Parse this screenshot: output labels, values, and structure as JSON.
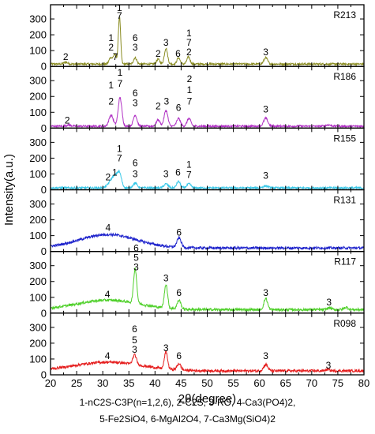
{
  "chart_data": {
    "type": "line",
    "xlabel": "2θ(degree)",
    "ylabel": "Intensity(a.u.)",
    "xlim": [
      20,
      80
    ],
    "ylim": [
      0,
      390
    ],
    "x_ticks": [
      "20",
      "25",
      "30",
      "35",
      "40",
      "45",
      "50",
      "55",
      "60",
      "65",
      "70",
      "75",
      "80"
    ],
    "y_ticks": [
      "0",
      "100",
      "200",
      "300"
    ],
    "grid": false,
    "legend_lines": [
      "1-nC2S-C3P(n=1,2,6), 2-C2S, 3-RO, 4-Ca3(PO4)2,",
      "5-Fe2SiO4,  6-MgAl2O4, 7-Ca3Mg(SiO4)2"
    ],
    "panels": [
      {
        "name": "R213",
        "color": "#8a8c22",
        "baseline": 15,
        "peaks": [
          [
            22.9,
            12,
            0.35
          ],
          [
            31.5,
            40,
            0.3
          ],
          [
            32.3,
            60,
            0.3
          ],
          [
            33.2,
            300,
            0.22
          ],
          [
            36.2,
            40,
            0.3
          ],
          [
            40.6,
            30,
            0.3
          ],
          [
            42.1,
            100,
            0.3
          ],
          [
            44.5,
            40,
            0.3
          ],
          [
            46.4,
            45,
            0.3
          ],
          [
            61.2,
            40,
            0.35
          ]
        ],
        "labels": [
          {
            "x": 22.9,
            "y": 40,
            "text": "2"
          },
          {
            "x": 31.6,
            "y": 160,
            "text": "1"
          },
          {
            "x": 31.6,
            "y": 100,
            "text": "2"
          },
          {
            "x": 32.4,
            "y": 40,
            "text": "7"
          },
          {
            "x": 33.2,
            "y": 350,
            "text": "1"
          },
          {
            "x": 33.2,
            "y": 300,
            "text": "7"
          },
          {
            "x": 36.2,
            "y": 160,
            "text": "6"
          },
          {
            "x": 36.2,
            "y": 100,
            "text": "3"
          },
          {
            "x": 40.6,
            "y": 60,
            "text": "2"
          },
          {
            "x": 42.1,
            "y": 130,
            "text": "3"
          },
          {
            "x": 44.4,
            "y": 60,
            "text": "6"
          },
          {
            "x": 46.5,
            "y": 190,
            "text": "1"
          },
          {
            "x": 46.5,
            "y": 130,
            "text": "7"
          },
          {
            "x": 46.5,
            "y": 70,
            "text": "2"
          },
          {
            "x": 61.2,
            "y": 70,
            "text": "3"
          }
        ]
      },
      {
        "name": "R186",
        "color": "#b030c4",
        "baseline": 12,
        "peaks": [
          [
            23.5,
            8,
            0.4
          ],
          [
            31.6,
            70,
            0.4
          ],
          [
            33.3,
            180,
            0.35
          ],
          [
            36.2,
            70,
            0.35
          ],
          [
            40.6,
            40,
            0.35
          ],
          [
            42.1,
            100,
            0.35
          ],
          [
            44.5,
            50,
            0.35
          ],
          [
            46.5,
            50,
            0.35
          ],
          [
            61.2,
            50,
            0.4
          ],
          [
            73.2,
            8,
            0.5
          ]
        ],
        "labels": [
          {
            "x": 23.2,
            "y": 30,
            "text": "2"
          },
          {
            "x": 31.6,
            "y": 250,
            "text": "1"
          },
          {
            "x": 31.6,
            "y": 150,
            "text": "2"
          },
          {
            "x": 33.3,
            "y": 330,
            "text": "1"
          },
          {
            "x": 33.3,
            "y": 260,
            "text": "7"
          },
          {
            "x": 36.2,
            "y": 200,
            "text": "6"
          },
          {
            "x": 36.2,
            "y": 140,
            "text": "3"
          },
          {
            "x": 40.6,
            "y": 120,
            "text": "2"
          },
          {
            "x": 42.2,
            "y": 150,
            "text": "3"
          },
          {
            "x": 44.5,
            "y": 110,
            "text": "6"
          },
          {
            "x": 46.6,
            "y": 290,
            "text": "2"
          },
          {
            "x": 46.6,
            "y": 220,
            "text": "1"
          },
          {
            "x": 46.6,
            "y": 150,
            "text": "7"
          },
          {
            "x": 61.2,
            "y": 100,
            "text": "3"
          }
        ]
      },
      {
        "name": "R155",
        "color": "#38c8e8",
        "baseline": 12,
        "peaks": [
          [
            31.6,
            40,
            0.6
          ],
          [
            32.4,
            55,
            0.5
          ],
          [
            33.2,
            85,
            0.4
          ],
          [
            36.2,
            30,
            0.4
          ],
          [
            42.1,
            25,
            0.4
          ],
          [
            44.5,
            40,
            0.35
          ],
          [
            46.5,
            25,
            0.4
          ],
          [
            61.2,
            12,
            0.5
          ]
        ],
        "labels": [
          {
            "x": 31.0,
            "y": 60,
            "text": "2"
          },
          {
            "x": 32.3,
            "y": 90,
            "text": "1"
          },
          {
            "x": 33.2,
            "y": 240,
            "text": "1"
          },
          {
            "x": 33.2,
            "y": 180,
            "text": "7"
          },
          {
            "x": 36.2,
            "y": 150,
            "text": "6"
          },
          {
            "x": 36.2,
            "y": 80,
            "text": "3"
          },
          {
            "x": 42.1,
            "y": 80,
            "text": "3"
          },
          {
            "x": 44.4,
            "y": 90,
            "text": "6"
          },
          {
            "x": 46.5,
            "y": 140,
            "text": "1"
          },
          {
            "x": 46.5,
            "y": 75,
            "text": "7"
          },
          {
            "x": 61.2,
            "y": 70,
            "text": "3"
          }
        ]
      },
      {
        "name": "R131",
        "color": "#1e23cc",
        "baseline": 22,
        "hump": [
          31,
          85,
          5.5
        ],
        "peaks": [
          [
            44.6,
            60,
            0.4
          ]
        ],
        "labels": [
          {
            "x": 31.0,
            "y": 130,
            "text": "4"
          },
          {
            "x": 44.6,
            "y": 100,
            "text": "6"
          }
        ]
      },
      {
        "name": "R117",
        "color": "#4fd02a",
        "baseline": 22,
        "hump": [
          31,
          60,
          6
        ],
        "peaks": [
          [
            36.2,
            220,
            0.3
          ],
          [
            42.1,
            150,
            0.3
          ],
          [
            44.6,
            55,
            0.35
          ],
          [
            61.2,
            70,
            0.35
          ],
          [
            73.4,
            12,
            0.4
          ],
          [
            76.6,
            15,
            0.4
          ]
        ],
        "labels": [
          {
            "x": 30.9,
            "y": 100,
            "text": "4"
          },
          {
            "x": 36.4,
            "y": 390,
            "text": "6"
          },
          {
            "x": 36.4,
            "y": 330,
            "text": "5"
          },
          {
            "x": 36.4,
            "y": 270,
            "text": "3"
          },
          {
            "x": 42.1,
            "y": 200,
            "text": "3"
          },
          {
            "x": 44.6,
            "y": 110,
            "text": "6"
          },
          {
            "x": 61.2,
            "y": 110,
            "text": "3"
          },
          {
            "x": 73.3,
            "y": 50,
            "text": "3"
          }
        ]
      },
      {
        "name": "R098",
        "color": "#e51e1e",
        "baseline": 25,
        "hump": [
          31,
          55,
          6.5
        ],
        "peaks": [
          [
            36.1,
            60,
            0.35
          ],
          [
            42.1,
            110,
            0.3
          ],
          [
            44.6,
            40,
            0.35
          ],
          [
            61.2,
            40,
            0.4
          ],
          [
            73.0,
            8,
            0.4
          ]
        ],
        "labels": [
          {
            "x": 30.9,
            "y": 100,
            "text": "4"
          },
          {
            "x": 36.1,
            "y": 270,
            "text": "6"
          },
          {
            "x": 36.1,
            "y": 200,
            "text": "5"
          },
          {
            "x": 36.1,
            "y": 140,
            "text": "3"
          },
          {
            "x": 42.1,
            "y": 150,
            "text": "3"
          },
          {
            "x": 44.6,
            "y": 100,
            "text": "6"
          },
          {
            "x": 61.2,
            "y": 100,
            "text": "3"
          },
          {
            "x": 73.2,
            "y": 40,
            "text": "3"
          }
        ]
      }
    ]
  }
}
